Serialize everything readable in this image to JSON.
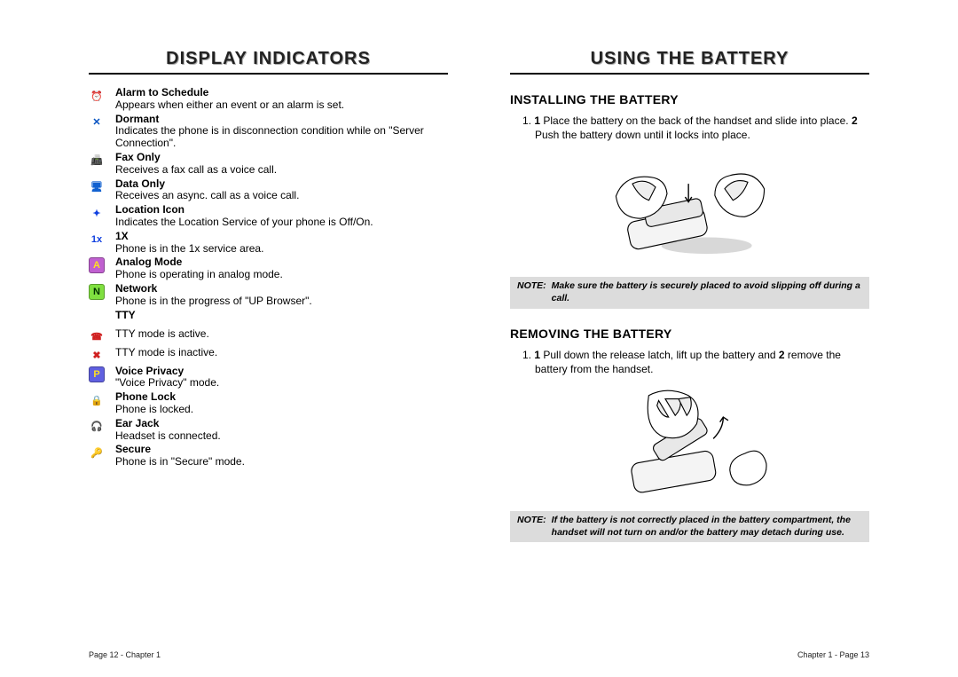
{
  "left": {
    "header": "DISPLAY INDICATORS",
    "footer": "Page 12 - Chapter 1",
    "indicators": [
      {
        "icon_bg": "#ffffff",
        "icon_fg": "#b030b0",
        "glyph": "⏰",
        "title": "Alarm to Schedule",
        "desc": "Appears when either an event or an alarm is set."
      },
      {
        "icon_bg": "#ffffff",
        "icon_fg": "#0050c0",
        "glyph": "✕",
        "title": "Dormant",
        "desc": "Indicates the phone is in disconnection condition while on \"Server Connection\"."
      },
      {
        "icon_bg": "#ffffff",
        "icon_fg": "#10a040",
        "glyph": "📠",
        "title": "Fax Only",
        "desc": "Receives a fax call as a voice call."
      },
      {
        "icon_bg": "#ffffff",
        "icon_fg": "#1060d0",
        "glyph": "🖥",
        "title": "Data Only",
        "desc": "Receives an async. call as a voice call."
      },
      {
        "icon_bg": "#ffffff",
        "icon_fg": "#1040e0",
        "glyph": "✦",
        "title": "Location Icon",
        "desc": "Indicates the Location Service of your phone is Off/On."
      },
      {
        "icon_bg": "#ffffff",
        "icon_fg": "#1040e0",
        "glyph": "1x",
        "title": "1X",
        "desc": "Phone is in the 1x service area."
      },
      {
        "icon_bg": "#c060d0",
        "icon_fg": "#ffe020",
        "glyph": "A",
        "title": "Analog Mode",
        "desc": "Phone is operating in analog mode."
      },
      {
        "icon_bg": "#80e040",
        "icon_fg": "#003000",
        "glyph": "N",
        "title": "Network",
        "desc": "Phone is in the progress of \"UP Browser\"."
      },
      {
        "icon_bg": "",
        "icon_fg": "",
        "glyph": "",
        "title": "TTY",
        "desc": ""
      },
      {
        "icon_bg": "#ffffff",
        "icon_fg": "#d02020",
        "glyph": "☎",
        "title": "",
        "desc": "TTY mode is active."
      },
      {
        "icon_bg": "#ffffff",
        "icon_fg": "#d02020",
        "glyph": "✖",
        "title": "",
        "desc": "TTY mode is inactive."
      },
      {
        "icon_bg": "#6060e0",
        "icon_fg": "#ffe020",
        "glyph": "P",
        "title": "Voice Privacy",
        "desc": "\"Voice Privacy\" mode."
      },
      {
        "icon_bg": "#ffffff",
        "icon_fg": "#e07020",
        "glyph": "🔒",
        "title": "Phone Lock",
        "desc": "Phone is locked."
      },
      {
        "icon_bg": "#ffffff",
        "icon_fg": "#20b060",
        "glyph": "🎧",
        "title": "Ear Jack",
        "desc": "Headset is connected."
      },
      {
        "icon_bg": "#ffffff",
        "icon_fg": "#2060e0",
        "glyph": "🔑",
        "title": "Secure",
        "desc": "Phone is in \"Secure\" mode."
      }
    ]
  },
  "right": {
    "header": "USING THE BATTERY",
    "footer": "Chapter 1 - Page 13",
    "section1": {
      "title": "INSTALLING THE BATTERY",
      "step_prefix": "1.",
      "step_b1": "1",
      "step_t1": " Place the battery on the back of the handset and slide into place. ",
      "step_b2": "2",
      "step_t2": " Push the battery down until it locks into place."
    },
    "note1": {
      "label": "NOTE:",
      "text": "Make sure the battery is securely placed to avoid slipping off during a call."
    },
    "section2": {
      "title": "REMOVING THE BATTERY",
      "step_prefix": "1.",
      "step_b1": "1",
      "step_t1": " Pull down the release latch, lift up the battery and ",
      "step_b2": "2",
      "step_t2": " remove the battery from the handset."
    },
    "note2": {
      "label": "NOTE:",
      "text": "If the battery is not correctly placed in the battery compartment, the handset will not turn on and/or the battery may detach during use."
    }
  }
}
